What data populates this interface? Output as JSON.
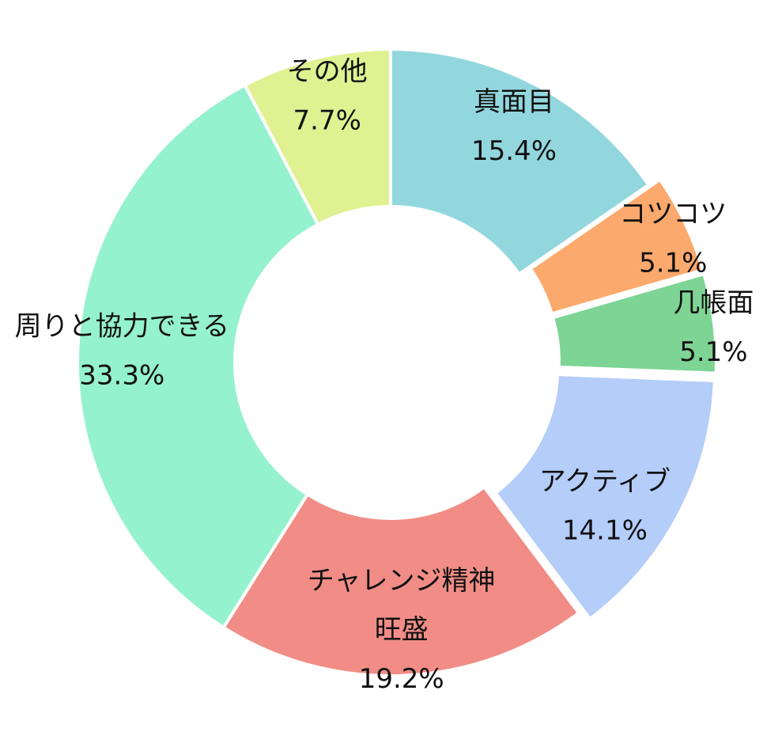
{
  "chart_data": {
    "type": "pie",
    "variant": "donut",
    "grid": false,
    "legend": "none",
    "start_angle_deg": 0,
    "direction": "clockwise",
    "slices": [
      {
        "label_lines": [
          "真面目"
        ],
        "value": 15.4,
        "value_label": "15.4%",
        "color": "#93d7de",
        "exploded": false
      },
      {
        "label_lines": [
          "コツコツ"
        ],
        "value": 5.1,
        "value_label": "5.1%",
        "color": "#fca96d",
        "exploded": true
      },
      {
        "label_lines": [
          "几帳面"
        ],
        "value": 5.1,
        "value_label": "5.1%",
        "color": "#7dd494",
        "exploded": true
      },
      {
        "label_lines": [
          "アクティブ"
        ],
        "value": 14.1,
        "value_label": "14.1%",
        "color": "#b4cdf9",
        "exploded": true
      },
      {
        "label_lines": [
          "チャレンジ精神",
          "旺盛"
        ],
        "value": 19.2,
        "value_label": "19.2%",
        "color": "#f18d86",
        "exploded": false
      },
      {
        "label_lines": [
          "周りと協力できる"
        ],
        "value": 33.3,
        "value_label": "33.3%",
        "color": "#95f2ce",
        "exploded": false
      },
      {
        "label_lines": [
          "その他"
        ],
        "value": 7.7,
        "value_label": "7.7%",
        "color": "#dff191",
        "exploded": false
      }
    ]
  }
}
